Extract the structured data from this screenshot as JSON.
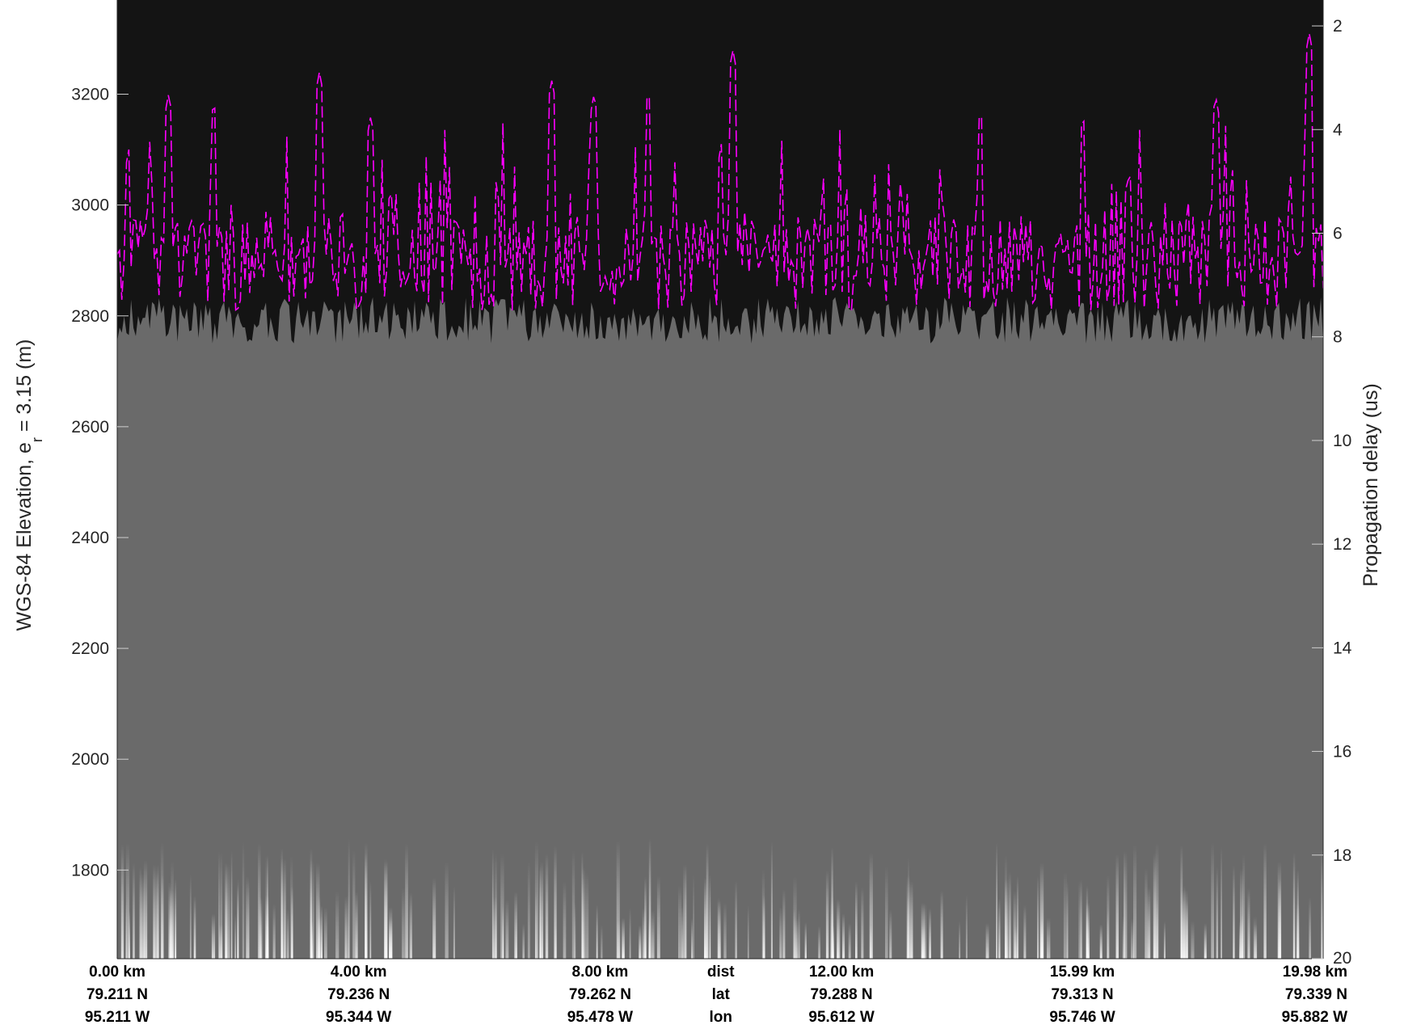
{
  "chart_data": {
    "type": "radargram",
    "left_axis": {
      "label_main": "WGS-84 Elevation, e",
      "label_sub": "r",
      "label_rest": " = 3.15 (m)",
      "ticks": [
        1800,
        2000,
        2200,
        2400,
        2600,
        2800,
        3000,
        3200
      ],
      "tick_labels": [
        "1800",
        "2000",
        "2200",
        "2400",
        "2600",
        "2800",
        "3000",
        "3200"
      ],
      "range": [
        1640,
        3370
      ]
    },
    "right_axis": {
      "label": "Propagation delay (us)",
      "ticks": [
        2,
        4,
        6,
        8,
        10,
        12,
        14,
        16,
        18,
        20
      ],
      "tick_labels": [
        "2",
        "4",
        "6",
        "8",
        "10",
        "12",
        "14",
        "16",
        "18",
        "20"
      ],
      "range": [
        1.5,
        20
      ]
    },
    "x_range_km": [
      0,
      19.98
    ],
    "bottom_ticks": [
      {
        "dist": "0.00 km",
        "lat": "79.211 N",
        "lon": "95.211 W"
      },
      {
        "dist": "4.00 km",
        "lat": "79.236 N",
        "lon": "95.344 W"
      },
      {
        "dist": "8.00 km",
        "lat": "79.262 N",
        "lon": "95.478 W"
      },
      {
        "dist": "dist",
        "lat": "lat",
        "lon": "lon"
      },
      {
        "dist": "12.00 km",
        "lat": "79.288 N",
        "lon": "95.612 W"
      },
      {
        "dist": "15.99 km",
        "lat": "79.313 N",
        "lon": "95.746 W"
      },
      {
        "dist": "19.98 km",
        "lat": "79.339 N",
        "lon": "95.882 W"
      }
    ],
    "bottom_tick_km": [
      0,
      4.0,
      8.0,
      10.0,
      12.0,
      15.99,
      19.98
    ],
    "surface_trace": {
      "color": "#ff00ff",
      "style": "dashed",
      "elevation_range": [
        2730,
        3310
      ],
      "peaks": [
        {
          "km": 0.85,
          "elev": 3200
        },
        {
          "km": 1.6,
          "elev": 3185
        },
        {
          "km": 3.35,
          "elev": 3240
        },
        {
          "km": 4.2,
          "elev": 3160
        },
        {
          "km": 7.2,
          "elev": 3225
        },
        {
          "km": 7.9,
          "elev": 3200
        },
        {
          "km": 8.8,
          "elev": 3205
        },
        {
          "km": 10.2,
          "elev": 3280
        },
        {
          "km": 14.3,
          "elev": 3170
        },
        {
          "km": 16.0,
          "elev": 3160
        },
        {
          "km": 18.2,
          "elev": 3195
        },
        {
          "km": 19.75,
          "elev": 3310
        }
      ]
    },
    "colors": {
      "air": "#141414",
      "ice": "#6a6a6a",
      "echo": "#ffffff",
      "trace": "#ff00ff"
    },
    "grid": false
  }
}
